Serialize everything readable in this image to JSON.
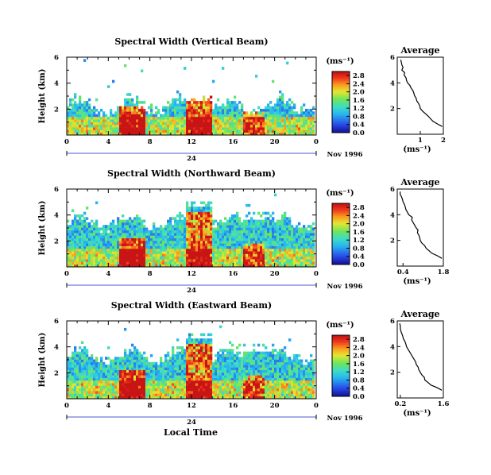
{
  "x_axis_label": "Local Time",
  "date_label": "Nov 1996",
  "unit_label": "(ms⁻¹)",
  "chart_data": [
    {
      "type": "heatmap",
      "title": "Spectral Width (Vertical Beam)",
      "ylabel": "Height (km)",
      "xlim": [
        0,
        24
      ],
      "ylim": [
        0,
        6
      ],
      "x_ticks": [
        "0",
        "4",
        "8",
        "12",
        "16",
        "20",
        "0"
      ],
      "x_tick_values": [
        0,
        4,
        8,
        12,
        16,
        20,
        24
      ],
      "y_ticks": [
        "2",
        "4",
        "6"
      ],
      "date_day": "24",
      "colorbar": {
        "ticks": [
          "0.0",
          "0.4",
          "0.8",
          "1.2",
          "1.6",
          "2.0",
          "2.4",
          "2.8"
        ],
        "range": [
          0,
          3.0
        ],
        "unit": "(ms⁻¹)"
      },
      "profile": {
        "title": "Average",
        "xlabel": "(ms⁻¹)",
        "xlim": [
          0,
          2
        ],
        "x_ticks": [
          "1",
          "2"
        ],
        "x_tick_values": [
          1,
          2
        ],
        "ylim": [
          0,
          6
        ],
        "y_ticks": [
          "2",
          "4",
          "6"
        ],
        "height": [
          0.6,
          0.8,
          1.0,
          1.2,
          1.4,
          1.6,
          1.8,
          2.0,
          2.2,
          2.4,
          2.6,
          2.8,
          3.0,
          3.2,
          3.4,
          3.6,
          3.8,
          4.0,
          4.2,
          4.4,
          4.6,
          4.8,
          5.0,
          5.2,
          5.4,
          5.6,
          5.8
        ],
        "values": [
          1.95,
          1.75,
          1.55,
          1.45,
          1.35,
          1.22,
          1.1,
          1.0,
          0.98,
          0.92,
          0.85,
          0.82,
          0.75,
          0.72,
          0.68,
          0.6,
          0.55,
          0.45,
          0.4,
          0.38,
          0.3,
          0.32,
          0.2,
          0.25,
          0.2,
          0.18,
          0.15
        ]
      }
    },
    {
      "type": "heatmap",
      "title": "Spectral Width (Northward Beam)",
      "ylabel": "Height (km)",
      "xlim": [
        0,
        24
      ],
      "ylim": [
        0,
        6
      ],
      "x_ticks": [
        "0",
        "4",
        "8",
        "12",
        "16",
        "20",
        "0"
      ],
      "x_tick_values": [
        0,
        4,
        8,
        12,
        16,
        20,
        24
      ],
      "y_ticks": [
        "2",
        "4",
        "6"
      ],
      "date_day": "24",
      "colorbar": {
        "ticks": [
          "0.0",
          "0.4",
          "0.8",
          "1.2",
          "1.6",
          "2.0",
          "2.4",
          "2.8"
        ],
        "range": [
          0,
          3.0
        ],
        "unit": "(ms⁻¹)"
      },
      "profile": {
        "title": "Average",
        "xlabel": "(ms⁻¹)",
        "xlim": [
          0.2,
          1.8
        ],
        "x_ticks": [
          "0.4",
          "1.8"
        ],
        "x_tick_values": [
          0.4,
          1.8
        ],
        "ylim": [
          0,
          6
        ],
        "y_ticks": [
          "2",
          "4",
          "6"
        ],
        "height": [
          0.6,
          0.8,
          1.0,
          1.2,
          1.4,
          1.6,
          1.8,
          2.0,
          2.2,
          2.4,
          2.6,
          2.8,
          3.0,
          3.2,
          3.4,
          3.6,
          3.8,
          4.0,
          4.2,
          4.4,
          4.6,
          4.8,
          5.0,
          5.2,
          5.4,
          5.6,
          5.8
        ],
        "values": [
          1.75,
          1.6,
          1.4,
          1.3,
          1.2,
          1.15,
          1.05,
          1.0,
          0.98,
          0.95,
          0.9,
          0.92,
          0.85,
          0.8,
          0.75,
          0.7,
          0.72,
          0.6,
          0.55,
          0.5,
          0.48,
          0.45,
          0.4,
          0.38,
          0.35,
          0.3,
          0.3
        ]
      }
    },
    {
      "type": "heatmap",
      "title": "Spectral Width (Eastward Beam)",
      "ylabel": "Height (km)",
      "xlim": [
        0,
        24
      ],
      "ylim": [
        0,
        6
      ],
      "x_ticks": [
        "0",
        "4",
        "8",
        "12",
        "16",
        "20",
        "0"
      ],
      "x_tick_values": [
        0,
        4,
        8,
        12,
        16,
        20,
        24
      ],
      "y_ticks": [
        "2",
        "4",
        "6"
      ],
      "date_day": "24",
      "colorbar": {
        "ticks": [
          "0.0",
          "0.4",
          "0.8",
          "1.2",
          "1.6",
          "2.0",
          "2.4",
          "2.8"
        ],
        "range": [
          0,
          3.0
        ],
        "unit": "(ms⁻¹)"
      },
      "profile": {
        "title": "Average",
        "xlabel": "(ms⁻¹)",
        "xlim": [
          0.1,
          1.6
        ],
        "x_ticks": [
          "0.2",
          "1.6"
        ],
        "x_tick_values": [
          0.2,
          1.6
        ],
        "ylim": [
          0,
          6
        ],
        "y_ticks": [
          "2",
          "4",
          "6"
        ],
        "height": [
          0.6,
          0.8,
          1.0,
          1.2,
          1.4,
          1.6,
          1.8,
          2.0,
          2.2,
          2.4,
          2.6,
          2.8,
          3.0,
          3.2,
          3.4,
          3.6,
          3.8,
          4.0,
          4.2,
          4.4,
          4.6,
          4.8,
          5.0,
          5.2,
          5.4,
          5.6,
          5.8
        ],
        "values": [
          1.55,
          1.4,
          1.2,
          1.1,
          1.0,
          0.98,
          0.9,
          0.85,
          0.8,
          0.78,
          0.72,
          0.7,
          0.65,
          0.6,
          0.55,
          0.5,
          0.45,
          0.4,
          0.38,
          0.35,
          0.3,
          0.28,
          0.25,
          0.22,
          0.2,
          0.2,
          0.18
        ]
      }
    }
  ]
}
